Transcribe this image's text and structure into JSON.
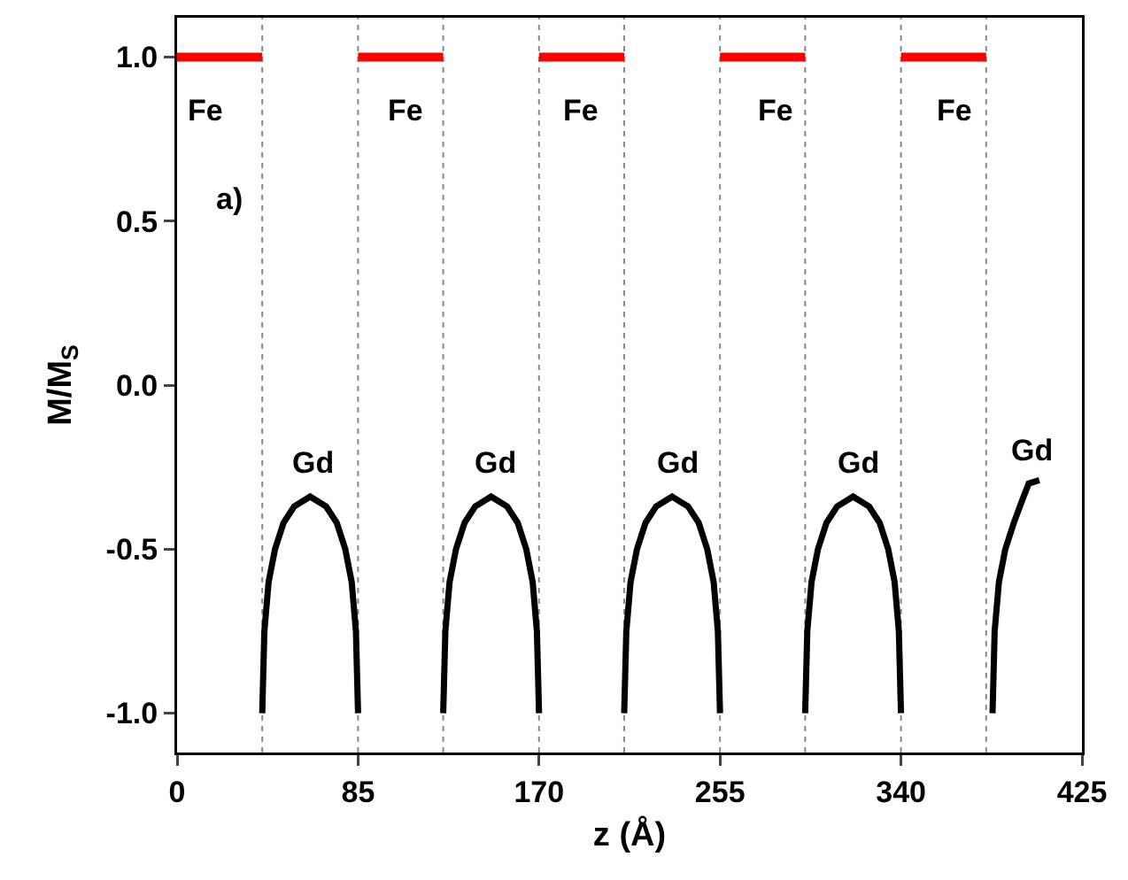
{
  "chart_data": {
    "type": "line",
    "xlabel": "z (Å)",
    "ylabel": "M/M$_{S}$",
    "xlim": [
      0,
      425
    ],
    "ylim": [
      -1.12,
      1.12
    ],
    "xticks": [
      0,
      85,
      170,
      255,
      340,
      425
    ],
    "yticks": [
      {
        "value": -1,
        "label": "-1.0"
      },
      {
        "value": -0.5,
        "label": "-0.5"
      },
      {
        "value": 0,
        "label": "0.0"
      },
      {
        "value": 0.5,
        "label": "0.5"
      },
      {
        "value": 1,
        "label": "1.0"
      }
    ],
    "grid": false,
    "marker": "none",
    "line_style": "solid",
    "series": [
      {
        "color": "#ff0000",
        "x": [
          0,
          40,
          null,
          85,
          125,
          null,
          170,
          210,
          null,
          255,
          295,
          null,
          340,
          380
        ],
        "values": [
          1,
          1,
          null,
          1,
          1,
          null,
          1,
          1,
          null,
          1,
          1,
          null,
          1,
          1
        ]
      },
      {
        "color": "#000000",
        "x": [
          40,
          41,
          43,
          46,
          50,
          55,
          62.5,
          70,
          75,
          79,
          82,
          84,
          85,
          null,
          125,
          126,
          128,
          131,
          135,
          140,
          147.5,
          155,
          160,
          164,
          167,
          169,
          170,
          null,
          210,
          211,
          213,
          216,
          220,
          225,
          232.5,
          240,
          245,
          249,
          252,
          254,
          255,
          null,
          295,
          296,
          298,
          301,
          305,
          310,
          317.5,
          325,
          330,
          334,
          337,
          339,
          340,
          null,
          383,
          384,
          386,
          389,
          393,
          397,
          400,
          405
        ],
        "values": [
          -1,
          -0.75,
          -0.6,
          -0.5,
          -0.42,
          -0.37,
          -0.34,
          -0.37,
          -0.42,
          -0.5,
          -0.6,
          -0.75,
          -1,
          null,
          -1,
          -0.75,
          -0.6,
          -0.5,
          -0.42,
          -0.37,
          -0.34,
          -0.37,
          -0.42,
          -0.5,
          -0.6,
          -0.75,
          -1,
          null,
          -1,
          -0.75,
          -0.6,
          -0.5,
          -0.42,
          -0.37,
          -0.34,
          -0.37,
          -0.42,
          -0.5,
          -0.6,
          -0.75,
          -1,
          null,
          -1,
          -0.75,
          -0.6,
          -0.5,
          -0.42,
          -0.37,
          -0.34,
          -0.37,
          -0.42,
          -0.5,
          -0.6,
          -0.75,
          -1,
          null,
          -1,
          -0.75,
          -0.6,
          -0.5,
          -0.42,
          -0.35,
          -0.3,
          -0.29
        ]
      }
    ],
    "ref_lines": [
      {
        "axis": "x",
        "value": 40,
        "color": "#888888",
        "line_style": "dotted"
      },
      {
        "axis": "x",
        "value": 85,
        "color": "#888888",
        "line_style": "dotted"
      },
      {
        "axis": "x",
        "value": 125,
        "color": "#888888",
        "line_style": "dotted"
      },
      {
        "axis": "x",
        "value": 170,
        "color": "#888888",
        "line_style": "dotted"
      },
      {
        "axis": "x",
        "value": 210,
        "color": "#888888",
        "line_style": "dotted"
      },
      {
        "axis": "x",
        "value": 255,
        "color": "#888888",
        "line_style": "dotted"
      },
      {
        "axis": "x",
        "value": 295,
        "color": "#888888",
        "line_style": "dotted"
      },
      {
        "axis": "x",
        "value": 340,
        "color": "#888888",
        "line_style": "dotted"
      },
      {
        "axis": "x",
        "value": 380,
        "color": "#888888",
        "line_style": "dotted"
      }
    ],
    "annotations": [
      "Fe",
      "Fe",
      "Fe",
      "Fe",
      "Fe",
      "Gd",
      "Gd",
      "Gd",
      "Gd",
      "Gd",
      "a)"
    ]
  }
}
